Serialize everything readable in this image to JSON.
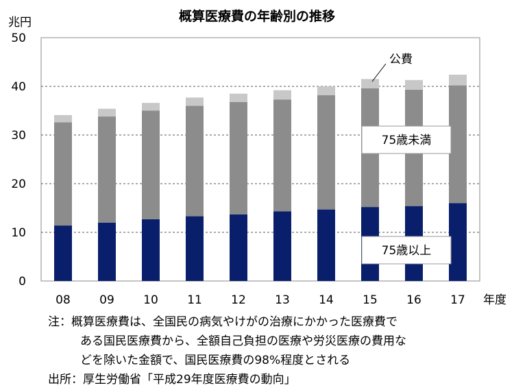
{
  "chart_data": {
    "type": "bar",
    "stacked": true,
    "title": "概算医療費の年齢別の推移",
    "ylabel": "兆円",
    "xlabel": "年度",
    "ylim": [
      0,
      50
    ],
    "yticks": [
      0,
      10,
      20,
      30,
      40,
      50
    ],
    "grid": true,
    "categories": [
      "08",
      "09",
      "10",
      "11",
      "12",
      "13",
      "14",
      "15",
      "16",
      "17"
    ],
    "series": [
      {
        "name": "75歳以上",
        "color": "#0a1f6b",
        "values": [
          11.4,
          12.0,
          12.7,
          13.3,
          13.7,
          14.3,
          14.7,
          15.2,
          15.4,
          16.0
        ]
      },
      {
        "name": "75歳未満",
        "color": "#8c8c8c",
        "values": [
          21.2,
          21.8,
          22.3,
          22.7,
          23.1,
          23.0,
          23.5,
          24.4,
          23.9,
          24.2
        ]
      },
      {
        "name": "公費",
        "color": "#c8c8c8",
        "values": [
          1.5,
          1.6,
          1.6,
          1.7,
          1.7,
          1.9,
          1.8,
          1.9,
          2.0,
          2.2
        ]
      }
    ],
    "annotations": [
      "公費",
      "75歳未満",
      "75歳以上"
    ]
  },
  "notes": {
    "note_line1": "注：概算医療費は、全国民の病気やけがの治療にかかった医療費で",
    "note_line2": "ある国民医療費から、全額自己負担の医療や労災医療の費用な",
    "note_line3": "どを除いた金額で、国民医療費の98%程度とされる",
    "source": "出所：厚生労働省「平成29年度医療費の動向」"
  }
}
